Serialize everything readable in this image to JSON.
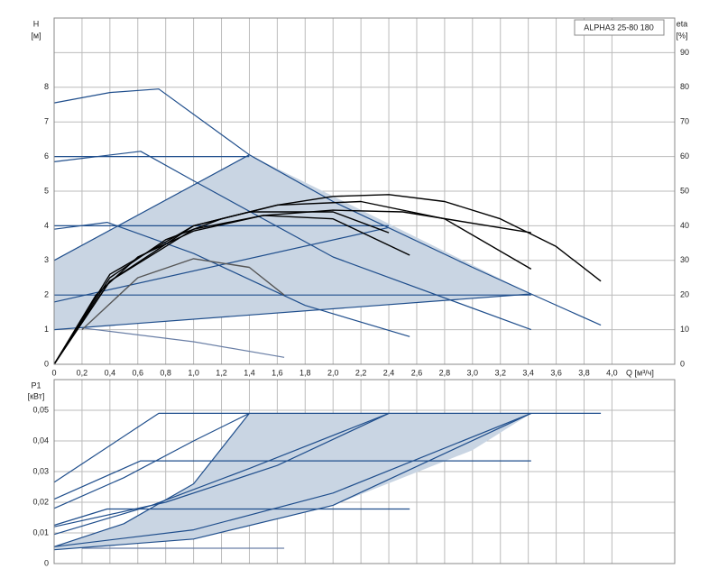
{
  "chart_data": [
    {
      "type": "line",
      "title": "ALPHA3 25-80 180",
      "y_label": "H",
      "y_unit": "[м]",
      "y2_label": "eta",
      "y2_unit": "[%]",
      "x_label": "Q [м³/ч]",
      "xlim": [
        0,
        4.45
      ],
      "ylim": [
        0,
        10
      ],
      "y2lim": [
        0,
        100
      ],
      "grid": true,
      "xticks": [
        0,
        {
          "value": 0.2,
          "label": "0,2"
        },
        {
          "value": 0.4,
          "label": "0,4"
        },
        {
          "value": 0.6,
          "label": "0,6"
        },
        {
          "value": 0.8,
          "label": "0,8"
        },
        {
          "value": 1.0,
          "label": "1,0"
        },
        {
          "value": 1.2,
          "label": "1,2"
        },
        {
          "value": 1.4,
          "label": "1,4"
        },
        {
          "value": 1.6,
          "label": "1,6"
        },
        {
          "value": 1.8,
          "label": "1,8"
        },
        {
          "value": 2.0,
          "label": "2,0"
        },
        {
          "value": 2.2,
          "label": "2,2"
        },
        {
          "value": 2.4,
          "label": "2,4"
        },
        {
          "value": 2.6,
          "label": "2,6"
        },
        {
          "value": 2.8,
          "label": "2,8"
        },
        {
          "value": 3.0,
          "label": "3,0"
        },
        {
          "value": 3.2,
          "label": "3,2"
        },
        {
          "value": 3.4,
          "label": "3,4"
        },
        {
          "value": 3.6,
          "label": "3,6"
        },
        {
          "value": 3.8,
          "label": "3,8"
        },
        {
          "value": 4.0,
          "label": "4,0"
        }
      ],
      "yticks": [
        0,
        1,
        2,
        3,
        4,
        5,
        6,
        7,
        8
      ],
      "y2ticks": [
        0,
        10,
        20,
        30,
        40,
        50,
        60,
        70,
        80,
        90
      ],
      "series": [
        {
          "fill": "#c9d5e3",
          "x": [
            0,
            0,
            1.4,
            3.42
          ],
          "values": [
            1.0,
            3.0,
            6.05,
            2.03
          ]
        },
        {
          "color": "#1f4e8c",
          "x": [
            0,
            0.4,
            0.75,
            1.4,
            2.0,
            3.0,
            3.42,
            3.92
          ],
          "values": [
            7.55,
            7.85,
            7.95,
            6.05,
            4.7,
            2.8,
            2.03,
            1.13
          ]
        },
        {
          "color": "#1f4e8c",
          "x": [
            0,
            0.62,
            1.0,
            2.0,
            3.42
          ],
          "values": [
            5.85,
            6.15,
            5.3,
            3.1,
            1.0
          ]
        },
        {
          "color": "#1f4e8c",
          "x": [
            0,
            0.38,
            1.0,
            1.8,
            2.55
          ],
          "values": [
            3.9,
            4.1,
            3.2,
            1.7,
            0.8
          ]
        },
        {
          "color": "#6a7fa6",
          "x": [
            0.2,
            1.0,
            1.65
          ],
          "values": [
            1.05,
            0.65,
            0.2
          ]
        },
        {
          "color": "#1f4e8c",
          "x": [
            0,
            1.4
          ],
          "values": [
            6.0,
            6.0
          ]
        },
        {
          "color": "#1f4e8c",
          "x": [
            0,
            2.4
          ],
          "values": [
            4.0,
            4.0
          ]
        },
        {
          "color": "#1f4e8c",
          "x": [
            0,
            3.42
          ],
          "values": [
            2.0,
            2.0
          ]
        },
        {
          "color": "#1f4e8c",
          "x": [
            0,
            1.4
          ],
          "values": [
            3.0,
            6.05
          ]
        },
        {
          "color": "#1f4e8c",
          "x": [
            0,
            2.4
          ],
          "values": [
            1.8,
            3.95
          ]
        },
        {
          "color": "#1f4e8c",
          "x": [
            0,
            3.42
          ],
          "values": [
            1.0,
            2.03
          ]
        },
        {
          "color": "#000000",
          "axis": "y2",
          "x": [
            0,
            0.4,
            0.8,
            1.2,
            1.6,
            2.0,
            2.4,
            2.8,
            3.2,
            3.6,
            3.92
          ],
          "values": [
            0,
            25,
            36,
            42,
            46,
            48.5,
            49,
            47,
            42,
            34,
            24
          ]
        },
        {
          "color": "#000000",
          "axis": "y2",
          "x": [
            0,
            0.3,
            0.6,
            1.0,
            1.5,
            2.0,
            2.5,
            3.42
          ],
          "values": [
            0,
            20,
            31,
            38.5,
            43,
            44.5,
            44,
            38
          ]
        },
        {
          "color": "#000000",
          "axis": "y2",
          "x": [
            0,
            0.4,
            1.0,
            1.6,
            2.2,
            2.8,
            3.42
          ],
          "values": [
            0,
            26,
            40,
            46,
            47,
            42,
            27.5
          ]
        },
        {
          "color": "#000000",
          "axis": "y2",
          "x": [
            0,
            0.4,
            1.0,
            1.5,
            2.0,
            2.55
          ],
          "values": [
            0,
            24,
            39,
            43,
            42,
            31.5
          ]
        },
        {
          "color": "#000000",
          "axis": "y2",
          "x": [
            0,
            0.4,
            1.0,
            1.4,
            2.0,
            2.4
          ],
          "values": [
            0,
            24,
            40,
            44,
            44,
            38
          ]
        },
        {
          "color": "#555555",
          "axis": "y2",
          "x": [
            0.2,
            0.6,
            1.0,
            1.4,
            1.65
          ],
          "values": [
            10,
            25,
            30.5,
            28,
            20
          ]
        }
      ]
    },
    {
      "type": "line",
      "y_label": "P1",
      "y_unit": "[кВт]",
      "xlim": [
        0,
        4.45
      ],
      "ylim": [
        0,
        0.06
      ],
      "grid": true,
      "yticks": [
        0,
        {
          "value": 0.01,
          "label": "0,01"
        },
        {
          "value": 0.02,
          "label": "0,02"
        },
        {
          "value": 0.03,
          "label": "0,03"
        },
        {
          "value": 0.04,
          "label": "0,04"
        },
        {
          "value": 0.05,
          "label": "0,05"
        }
      ],
      "series": [
        {
          "fill": "#c9d5e3",
          "x": [
            0,
            0.5,
            1.0,
            1.4,
            3.42,
            3.0,
            2.0,
            1.0,
            0
          ],
          "values": [
            0.0055,
            0.013,
            0.026,
            0.049,
            0.049,
            0.037,
            0.019,
            0.008,
            0.0045
          ]
        },
        {
          "color": "#1f4e8c",
          "x": [
            0,
            0.75,
            3.92
          ],
          "values": [
            0.0265,
            0.049,
            0.049
          ]
        },
        {
          "color": "#1f4e8c",
          "x": [
            0,
            0.62,
            3.42
          ],
          "values": [
            0.021,
            0.0335,
            0.0335
          ]
        },
        {
          "color": "#1f4e8c",
          "x": [
            0,
            0.38,
            2.55
          ],
          "values": [
            0.0125,
            0.0178,
            0.0178
          ]
        },
        {
          "color": "#6a7fa6",
          "x": [
            0.2,
            1.65
          ],
          "values": [
            0.005,
            0.005
          ]
        },
        {
          "color": "#1f4e8c",
          "x": [
            0,
            0.5,
            1.0,
            1.4
          ],
          "values": [
            0.0055,
            0.013,
            0.026,
            0.049
          ]
        },
        {
          "color": "#1f4e8c",
          "x": [
            0,
            0.7,
            1.4,
            2.4
          ],
          "values": [
            0.0095,
            0.019,
            0.031,
            0.049
          ]
        },
        {
          "color": "#1f4e8c",
          "x": [
            0,
            1.0,
            2.0,
            3.42
          ],
          "values": [
            0.0045,
            0.008,
            0.019,
            0.049
          ]
        },
        {
          "color": "#1f4e8c",
          "x": [
            0,
            1.0,
            2.0,
            3.42
          ],
          "values": [
            0.0055,
            0.011,
            0.023,
            0.049
          ]
        },
        {
          "color": "#1f4e8c",
          "x": [
            0,
            0.5,
            1.0,
            1.4
          ],
          "values": [
            0.018,
            0.028,
            0.04,
            0.049
          ]
        },
        {
          "color": "#1f4e8c",
          "x": [
            0,
            0.8,
            1.6,
            2.4
          ],
          "values": [
            0.012,
            0.02,
            0.032,
            0.049
          ]
        }
      ]
    }
  ]
}
